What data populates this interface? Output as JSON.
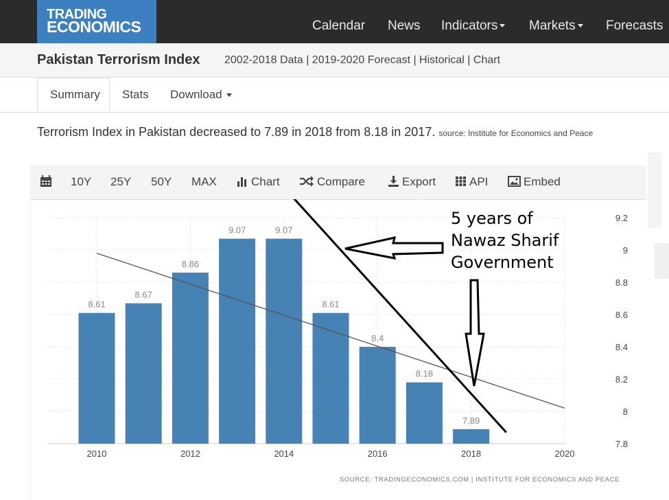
{
  "logo": {
    "line1": "TRADING",
    "line2": "ECONOMICS"
  },
  "nav": [
    {
      "label": "Calendar",
      "dropdown": false
    },
    {
      "label": "News",
      "dropdown": false
    },
    {
      "label": "Indicators",
      "dropdown": true
    },
    {
      "label": "Markets",
      "dropdown": true
    },
    {
      "label": "Forecasts",
      "dropdown": false
    }
  ],
  "header": {
    "title": "Pakistan Terrorism Index",
    "subtitle": "2002-2018 Data | 2019-2020 Forecast | Historical | Chart"
  },
  "tabs": {
    "summary": "Summary",
    "stats": "Stats",
    "download": "Download"
  },
  "summary": {
    "text": "Terrorism Index in Pakistan decreased to 7.89 in 2018 from 8.18 in 2017.",
    "source": "source: Institute for Economics and Peace"
  },
  "toolbar": {
    "r10": "10Y",
    "r25": "25Y",
    "r50": "50Y",
    "max": "MAX",
    "chart": "Chart",
    "compare": "Compare",
    "export": "Export",
    "api": "API",
    "embed": "Embed"
  },
  "chart_data": {
    "type": "bar",
    "x": [
      2010,
      2011,
      2012,
      2013,
      2014,
      2015,
      2016,
      2017,
      2018
    ],
    "values": [
      8.61,
      8.67,
      8.86,
      9.07,
      9.07,
      8.61,
      8.4,
      8.18,
      7.89
    ],
    "data_labels": [
      "8.61",
      "8.67",
      "8.86",
      "9.07",
      "9.07",
      "8.61",
      "8.4",
      "8.18",
      "7.89"
    ],
    "x_ticks": [
      "2010",
      "2012",
      "2014",
      "2016",
      "2018",
      "2020"
    ],
    "x_tick_values": [
      2010,
      2012,
      2014,
      2016,
      2018,
      2020
    ],
    "y_ticks": [
      "7.8",
      "8",
      "8.2",
      "8.4",
      "8.6",
      "8.8",
      "9",
      "9.2"
    ],
    "y_tick_values": [
      7.8,
      8,
      8.2,
      8.4,
      8.6,
      8.8,
      9,
      9.2
    ],
    "xlim": [
      2010,
      2020
    ],
    "ylim": [
      7.8,
      9.2
    ],
    "trendline": {
      "from": [
        2010,
        8.98
      ],
      "to": [
        2020,
        8.02
      ]
    },
    "grid": true,
    "y_axis_side": "right",
    "bar_color": "#4682b4",
    "source_text": "SOURCE: TRADINGECONOMICS.COM | INSTITUTE FOR ECONOMICS AND PEACE",
    "annotation": {
      "text_lines": [
        "5 years of",
        "Nawaz Sharif",
        "Government"
      ],
      "diagonal_line": {
        "from": [
          2014.18,
          9.33
        ],
        "to": [
          2018.75,
          7.87
        ]
      }
    }
  }
}
